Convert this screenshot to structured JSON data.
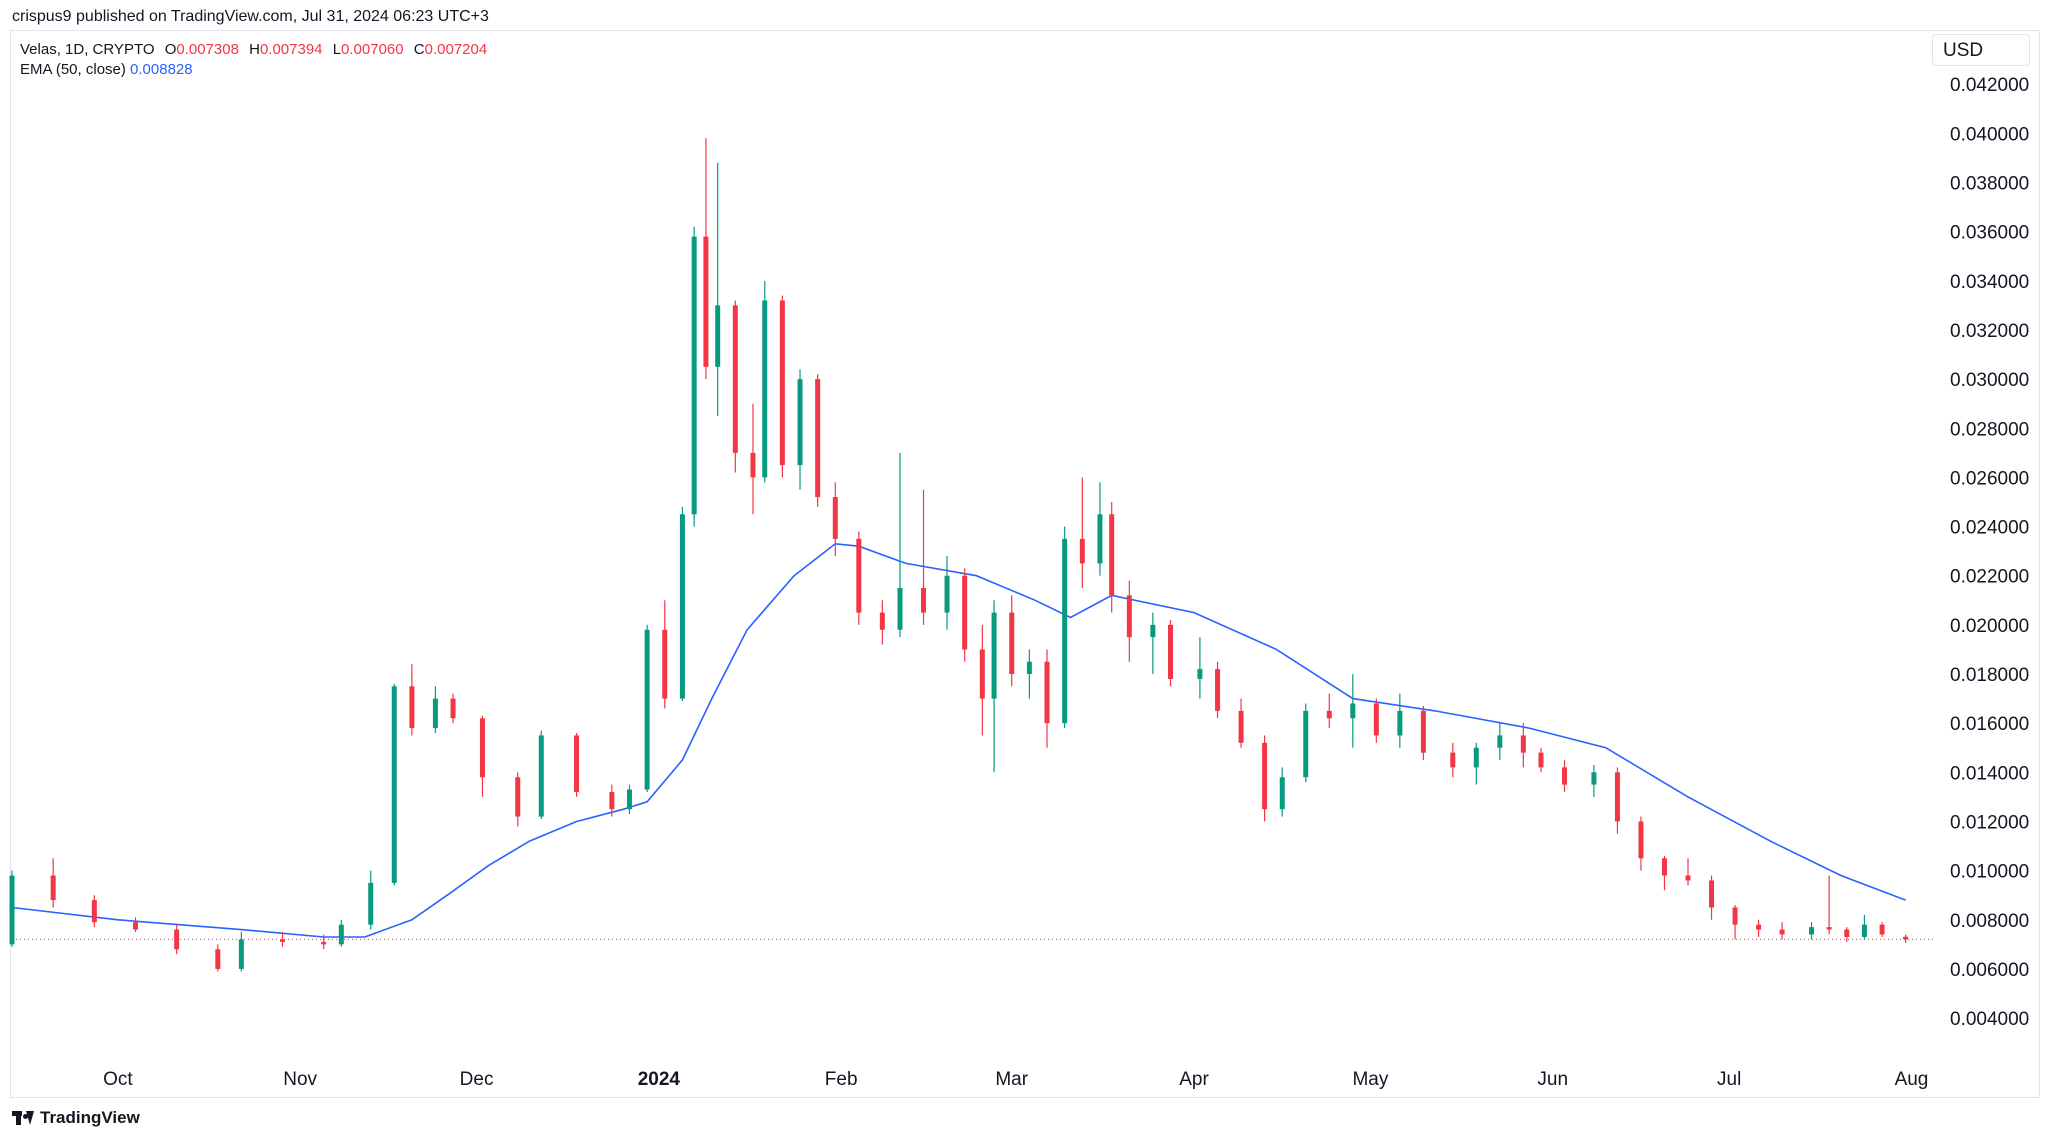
{
  "header": {
    "published_by": "crispus9 published on TradingView.com, Jul 31, 2024 06:23 UTC+3"
  },
  "legend": {
    "symbol": "Velas, 1D, CRYPTO",
    "o_label": "O",
    "o_value": "0.007308",
    "h_label": "H",
    "h_value": "0.007394",
    "l_label": "L",
    "l_value": "0.007060",
    "c_label": "C",
    "c_value": "0.007204",
    "ema_label": "EMA (50, close)",
    "ema_value": "0.008828"
  },
  "currency": "USD",
  "footer": {
    "brand": "TradingView"
  },
  "colors": {
    "up": "#089981",
    "down": "#f23645",
    "ema": "#2962ff",
    "last_price_line": "#f23645"
  },
  "chart_data": {
    "type": "candlestick",
    "title": "",
    "ylabel": "USD",
    "ylim": [
      0.0027,
      0.0438
    ],
    "y_ticks": [
      "0.004000",
      "0.006000",
      "0.008000",
      "0.010000",
      "0.012000",
      "0.014000",
      "0.016000",
      "0.018000",
      "0.020000",
      "0.022000",
      "0.024000",
      "0.026000",
      "0.028000",
      "0.030000",
      "0.032000",
      "0.034000",
      "0.036000",
      "0.038000",
      "0.040000",
      "0.042000"
    ],
    "x_range": [
      "2023-09-13",
      "2024-08-05"
    ],
    "x_ticks": [
      {
        "date": "2023-10-01",
        "label": "Oct",
        "bold": false
      },
      {
        "date": "2023-11-01",
        "label": "Nov",
        "bold": false
      },
      {
        "date": "2023-12-01",
        "label": "Dec",
        "bold": false
      },
      {
        "date": "2024-01-01",
        "label": "2024",
        "bold": true
      },
      {
        "date": "2024-02-01",
        "label": "Feb",
        "bold": false
      },
      {
        "date": "2024-03-01",
        "label": "Mar",
        "bold": false
      },
      {
        "date": "2024-04-01",
        "label": "Apr",
        "bold": false
      },
      {
        "date": "2024-05-01",
        "label": "May",
        "bold": false
      },
      {
        "date": "2024-06-01",
        "label": "Jun",
        "bold": false
      },
      {
        "date": "2024-07-01",
        "label": "Jul",
        "bold": false
      },
      {
        "date": "2024-08-01",
        "label": "Aug",
        "bold": false
      }
    ],
    "last_price": 0.007204,
    "series": [
      {
        "name": "Velas, 1D, CRYPTO",
        "type": "candlestick",
        "ohlc": [
          [
            "2023-09-13",
            0.007,
            0.01,
            0.0069,
            0.0098
          ],
          [
            "2023-09-20",
            0.0098,
            0.0105,
            0.0085,
            0.0088
          ],
          [
            "2023-09-27",
            0.0088,
            0.009,
            0.0077,
            0.0079
          ],
          [
            "2023-10-04",
            0.0079,
            0.0081,
            0.0075,
            0.0076
          ],
          [
            "2023-10-11",
            0.0076,
            0.0078,
            0.0066,
            0.0068
          ],
          [
            "2023-10-18",
            0.0068,
            0.007,
            0.0059,
            0.006
          ],
          [
            "2023-10-22",
            0.006,
            0.0075,
            0.0059,
            0.0072
          ],
          [
            "2023-10-29",
            0.0072,
            0.0075,
            0.0069,
            0.0071
          ],
          [
            "2023-11-05",
            0.0071,
            0.0074,
            0.0068,
            0.007
          ],
          [
            "2023-11-08",
            0.007,
            0.008,
            0.0069,
            0.0078
          ],
          [
            "2023-11-13",
            0.0078,
            0.01,
            0.0076,
            0.0095
          ],
          [
            "2023-11-17",
            0.0095,
            0.0176,
            0.0094,
            0.0175
          ],
          [
            "2023-11-20",
            0.0175,
            0.0184,
            0.0155,
            0.0158
          ],
          [
            "2023-11-24",
            0.0158,
            0.0175,
            0.0156,
            0.017
          ],
          [
            "2023-11-27",
            0.017,
            0.0172,
            0.016,
            0.0162
          ],
          [
            "2023-12-02",
            0.0162,
            0.0163,
            0.013,
            0.0138
          ],
          [
            "2023-12-08",
            0.0138,
            0.014,
            0.0118,
            0.0122
          ],
          [
            "2023-12-12",
            0.0122,
            0.0157,
            0.0121,
            0.0155
          ],
          [
            "2023-12-18",
            0.0155,
            0.0156,
            0.013,
            0.0132
          ],
          [
            "2023-12-24",
            0.0132,
            0.0135,
            0.0122,
            0.0125
          ],
          [
            "2023-12-27",
            0.0125,
            0.0135,
            0.0123,
            0.0133
          ],
          [
            "2023-12-30",
            0.0133,
            0.02,
            0.0132,
            0.0198
          ],
          [
            "2024-01-02",
            0.0198,
            0.021,
            0.0166,
            0.017
          ],
          [
            "2024-01-05",
            0.017,
            0.0248,
            0.0169,
            0.0245
          ],
          [
            "2024-01-07",
            0.0245,
            0.0362,
            0.024,
            0.0358
          ],
          [
            "2024-01-09",
            0.0358,
            0.0398,
            0.03,
            0.0305
          ],
          [
            "2024-01-11",
            0.0305,
            0.0388,
            0.0285,
            0.033
          ],
          [
            "2024-01-14",
            0.033,
            0.0332,
            0.0262,
            0.027
          ],
          [
            "2024-01-17",
            0.027,
            0.029,
            0.0245,
            0.026
          ],
          [
            "2024-01-19",
            0.026,
            0.034,
            0.0258,
            0.0332
          ],
          [
            "2024-01-22",
            0.0332,
            0.0334,
            0.026,
            0.0265
          ],
          [
            "2024-01-25",
            0.0265,
            0.0304,
            0.0255,
            0.03
          ],
          [
            "2024-01-28",
            0.03,
            0.0302,
            0.0248,
            0.0252
          ],
          [
            "2024-01-31",
            0.0252,
            0.0258,
            0.0228,
            0.0235
          ],
          [
            "2024-02-04",
            0.0235,
            0.0238,
            0.02,
            0.0205
          ],
          [
            "2024-02-08",
            0.0205,
            0.021,
            0.0192,
            0.0198
          ],
          [
            "2024-02-11",
            0.0198,
            0.027,
            0.0195,
            0.0215
          ],
          [
            "2024-02-15",
            0.0215,
            0.0255,
            0.02,
            0.0205
          ],
          [
            "2024-02-19",
            0.0205,
            0.0228,
            0.0198,
            0.022
          ],
          [
            "2024-02-22",
            0.022,
            0.0223,
            0.0185,
            0.019
          ],
          [
            "2024-02-25",
            0.019,
            0.02,
            0.0155,
            0.017
          ],
          [
            "2024-02-27",
            0.017,
            0.021,
            0.014,
            0.0205
          ],
          [
            "2024-03-01",
            0.0205,
            0.0212,
            0.0175,
            0.018
          ],
          [
            "2024-03-04",
            0.018,
            0.019,
            0.017,
            0.0185
          ],
          [
            "2024-03-07",
            0.0185,
            0.019,
            0.015,
            0.016
          ],
          [
            "2024-03-10",
            0.016,
            0.024,
            0.0158,
            0.0235
          ],
          [
            "2024-03-13",
            0.0235,
            0.026,
            0.0215,
            0.0225
          ],
          [
            "2024-03-16",
            0.0225,
            0.0258,
            0.022,
            0.0245
          ],
          [
            "2024-03-18",
            0.0245,
            0.025,
            0.0205,
            0.0212
          ],
          [
            "2024-03-21",
            0.0212,
            0.0218,
            0.0185,
            0.0195
          ],
          [
            "2024-03-25",
            0.0195,
            0.0205,
            0.018,
            0.02
          ],
          [
            "2024-03-28",
            0.02,
            0.0202,
            0.0175,
            0.0178
          ],
          [
            "2024-04-02",
            0.0178,
            0.0195,
            0.017,
            0.0182
          ],
          [
            "2024-04-05",
            0.0182,
            0.0185,
            0.0162,
            0.0165
          ],
          [
            "2024-04-09",
            0.0165,
            0.017,
            0.015,
            0.0152
          ],
          [
            "2024-04-13",
            0.0152,
            0.0155,
            0.012,
            0.0125
          ],
          [
            "2024-04-16",
            0.0125,
            0.0142,
            0.0122,
            0.0138
          ],
          [
            "2024-04-20",
            0.0138,
            0.0168,
            0.0136,
            0.0165
          ],
          [
            "2024-04-24",
            0.0165,
            0.0172,
            0.0158,
            0.0162
          ],
          [
            "2024-04-28",
            0.0162,
            0.018,
            0.015,
            0.0168
          ],
          [
            "2024-05-02",
            0.0168,
            0.017,
            0.0152,
            0.0155
          ],
          [
            "2024-05-06",
            0.0155,
            0.0172,
            0.015,
            0.0165
          ],
          [
            "2024-05-10",
            0.0165,
            0.0167,
            0.0145,
            0.0148
          ],
          [
            "2024-05-15",
            0.0148,
            0.0152,
            0.0138,
            0.0142
          ],
          [
            "2024-05-19",
            0.0142,
            0.0152,
            0.0135,
            0.015
          ],
          [
            "2024-05-23",
            0.015,
            0.016,
            0.0145,
            0.0155
          ],
          [
            "2024-05-27",
            0.0155,
            0.016,
            0.0142,
            0.0148
          ],
          [
            "2024-05-30",
            0.0148,
            0.015,
            0.014,
            0.0142
          ],
          [
            "2024-06-03",
            0.0142,
            0.0145,
            0.0132,
            0.0135
          ],
          [
            "2024-06-08",
            0.0135,
            0.0143,
            0.013,
            0.014
          ],
          [
            "2024-06-12",
            0.014,
            0.0142,
            0.0115,
            0.012
          ],
          [
            "2024-06-16",
            0.012,
            0.0122,
            0.01,
            0.0105
          ],
          [
            "2024-06-20",
            0.0105,
            0.0106,
            0.0092,
            0.0098
          ],
          [
            "2024-06-24",
            0.0098,
            0.0105,
            0.0094,
            0.0096
          ],
          [
            "2024-06-28",
            0.0096,
            0.0098,
            0.008,
            0.0085
          ],
          [
            "2024-07-02",
            0.0085,
            0.0086,
            0.0072,
            0.0078
          ],
          [
            "2024-07-06",
            0.0078,
            0.008,
            0.0073,
            0.0076
          ],
          [
            "2024-07-10",
            0.0076,
            0.0079,
            0.0072,
            0.0074
          ],
          [
            "2024-07-15",
            0.0074,
            0.0079,
            0.0072,
            0.0077
          ],
          [
            "2024-07-18",
            0.0077,
            0.0098,
            0.0074,
            0.0076
          ],
          [
            "2024-07-21",
            0.0076,
            0.0077,
            0.0071,
            0.0073
          ],
          [
            "2024-07-24",
            0.0073,
            0.0082,
            0.0072,
            0.0078
          ],
          [
            "2024-07-27",
            0.0078,
            0.0079,
            0.0073,
            0.0074
          ],
          [
            "2024-07-31",
            0.007308,
            0.007394,
            0.00706,
            0.007204
          ]
        ]
      },
      {
        "name": "EMA (50, close)",
        "type": "line",
        "points": [
          [
            "2023-09-13",
            0.0085
          ],
          [
            "2023-10-01",
            0.008
          ],
          [
            "2023-10-22",
            0.0076
          ],
          [
            "2023-11-05",
            0.0073
          ],
          [
            "2023-11-12",
            0.0073
          ],
          [
            "2023-11-20",
            0.008
          ],
          [
            "2023-11-26",
            0.009
          ],
          [
            "2023-12-03",
            0.0102
          ],
          [
            "2023-12-10",
            0.0112
          ],
          [
            "2023-12-18",
            0.012
          ],
          [
            "2023-12-26",
            0.0125
          ],
          [
            "2023-12-30",
            0.0128
          ],
          [
            "2024-01-05",
            0.0145
          ],
          [
            "2024-01-10",
            0.017
          ],
          [
            "2024-01-16",
            0.0198
          ],
          [
            "2024-01-24",
            0.022
          ],
          [
            "2024-01-31",
            0.0233
          ],
          [
            "2024-02-04",
            0.0232
          ],
          [
            "2024-02-12",
            0.0225
          ],
          [
            "2024-02-24",
            0.022
          ],
          [
            "2024-03-05",
            0.021
          ],
          [
            "2024-03-11",
            0.0203
          ],
          [
            "2024-03-18",
            0.0212
          ],
          [
            "2024-04-01",
            0.0205
          ],
          [
            "2024-04-15",
            0.019
          ],
          [
            "2024-04-28",
            0.017
          ],
          [
            "2024-05-12",
            0.0165
          ],
          [
            "2024-05-28",
            0.0158
          ],
          [
            "2024-06-10",
            0.015
          ],
          [
            "2024-06-24",
            0.013
          ],
          [
            "2024-07-08",
            0.0112
          ],
          [
            "2024-07-20",
            0.0098
          ],
          [
            "2024-07-31",
            0.0088
          ]
        ]
      }
    ],
    "grid": false,
    "legend_position": "top-left"
  }
}
